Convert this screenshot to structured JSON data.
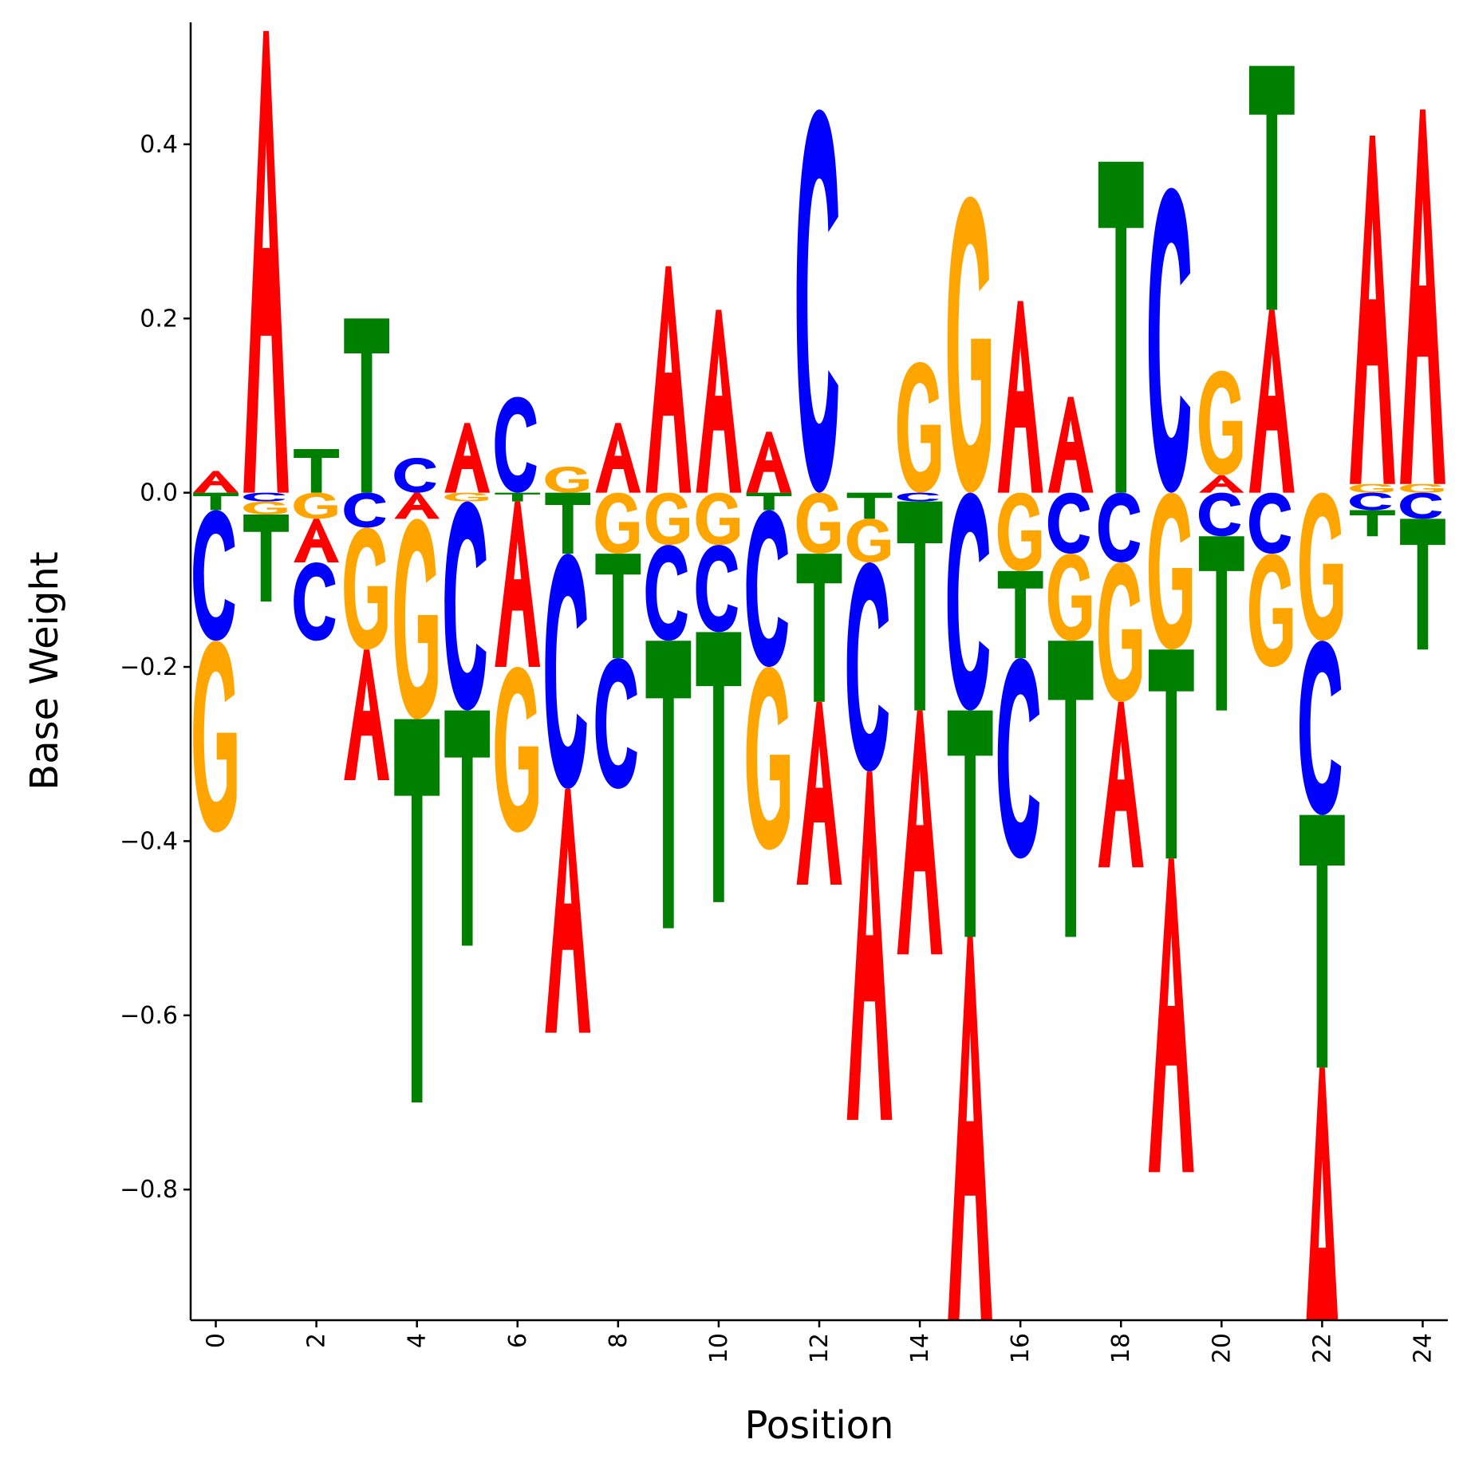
{
  "chart_data": {
    "type": "sequence-logo",
    "xlabel": "Position",
    "ylabel": "Base Weight",
    "xlim": [
      -0.5,
      24.5
    ],
    "ylim": [
      -0.95,
      0.54
    ],
    "x_ticks": [
      0,
      2,
      4,
      6,
      8,
      10,
      12,
      14,
      16,
      18,
      20,
      22,
      24
    ],
    "x_tick_labels": [
      "0",
      "2",
      "4",
      "6",
      "8",
      "10",
      "12",
      "14",
      "16",
      "18",
      "20",
      "22",
      "24"
    ],
    "y_ticks": [
      0.4,
      0.2,
      0.0,
      -0.2,
      -0.4,
      -0.6,
      -0.8
    ],
    "y_tick_labels": [
      "0.4",
      "0.2",
      "0.0",
      "−0.2",
      "−0.4",
      "−0.6",
      "−0.8"
    ],
    "bases": [
      "A",
      "C",
      "G",
      "T"
    ],
    "colors": {
      "A": "#ff0000",
      "C": "#0000ff",
      "G": "#ffa500",
      "T": "#008000"
    },
    "grid": false,
    "positions": [
      {
        "pos": 0,
        "A": 0.025,
        "C": -0.15,
        "G": -0.22,
        "T": -0.02
      },
      {
        "pos": 1,
        "A": 0.53,
        "C": -0.01,
        "G": -0.015,
        "T": -0.1
      },
      {
        "pos": 2,
        "A": -0.05,
        "C": -0.09,
        "G": -0.03,
        "T": 0.05
      },
      {
        "pos": 3,
        "A": -0.15,
        "C": -0.04,
        "G": -0.14,
        "T": 0.2
      },
      {
        "pos": 4,
        "A": -0.03,
        "C": 0.04,
        "G": -0.23,
        "T": -0.44
      },
      {
        "pos": 5,
        "A": 0.08,
        "C": -0.24,
        "G": -0.01,
        "T": -0.27
      },
      {
        "pos": 6,
        "A": -0.19,
        "C": 0.11,
        "G": -0.19,
        "T": -0.01
      },
      {
        "pos": 7,
        "A": -0.28,
        "C": -0.27,
        "G": 0.03,
        "T": -0.07
      },
      {
        "pos": 8,
        "A": 0.08,
        "C": -0.15,
        "G": -0.07,
        "T": -0.12
      },
      {
        "pos": 9,
        "A": 0.26,
        "C": -0.11,
        "G": -0.06,
        "T": -0.33
      },
      {
        "pos": 10,
        "A": 0.21,
        "C": -0.1,
        "G": -0.06,
        "T": -0.31
      },
      {
        "pos": 11,
        "A": 0.07,
        "C": -0.18,
        "G": -0.21,
        "T": -0.02
      },
      {
        "pos": 12,
        "A": -0.21,
        "C": 0.44,
        "G": -0.07,
        "T": -0.17
      },
      {
        "pos": 13,
        "A": -0.4,
        "C": -0.24,
        "G": -0.05,
        "T": -0.03
      },
      {
        "pos": 14,
        "A": -0.28,
        "C": -0.01,
        "G": 0.15,
        "T": -0.24
      },
      {
        "pos": 15,
        "A": -0.45,
        "C": -0.25,
        "G": 0.34,
        "T": -0.26
      },
      {
        "pos": 16,
        "A": 0.22,
        "C": -0.23,
        "G": -0.09,
        "T": -0.1
      },
      {
        "pos": 17,
        "A": 0.11,
        "C": -0.07,
        "G": -0.1,
        "T": -0.34
      },
      {
        "pos": 18,
        "A": -0.19,
        "C": -0.08,
        "G": -0.16,
        "T": 0.38
      },
      {
        "pos": 19,
        "A": -0.36,
        "C": 0.35,
        "G": -0.18,
        "T": -0.24
      },
      {
        "pos": 20,
        "A": 0.02,
        "C": -0.05,
        "G": 0.12,
        "T": -0.2
      },
      {
        "pos": 21,
        "A": 0.21,
        "C": -0.07,
        "G": -0.13,
        "T": 0.28
      },
      {
        "pos": 22,
        "A": -0.44,
        "C": -0.2,
        "G": -0.17,
        "T": -0.29
      },
      {
        "pos": 23,
        "A": 0.4,
        "C": -0.02,
        "G": 0.01,
        "T": -0.03
      },
      {
        "pos": 24,
        "A": 0.43,
        "C": -0.03,
        "G": 0.01,
        "T": -0.15
      }
    ]
  }
}
